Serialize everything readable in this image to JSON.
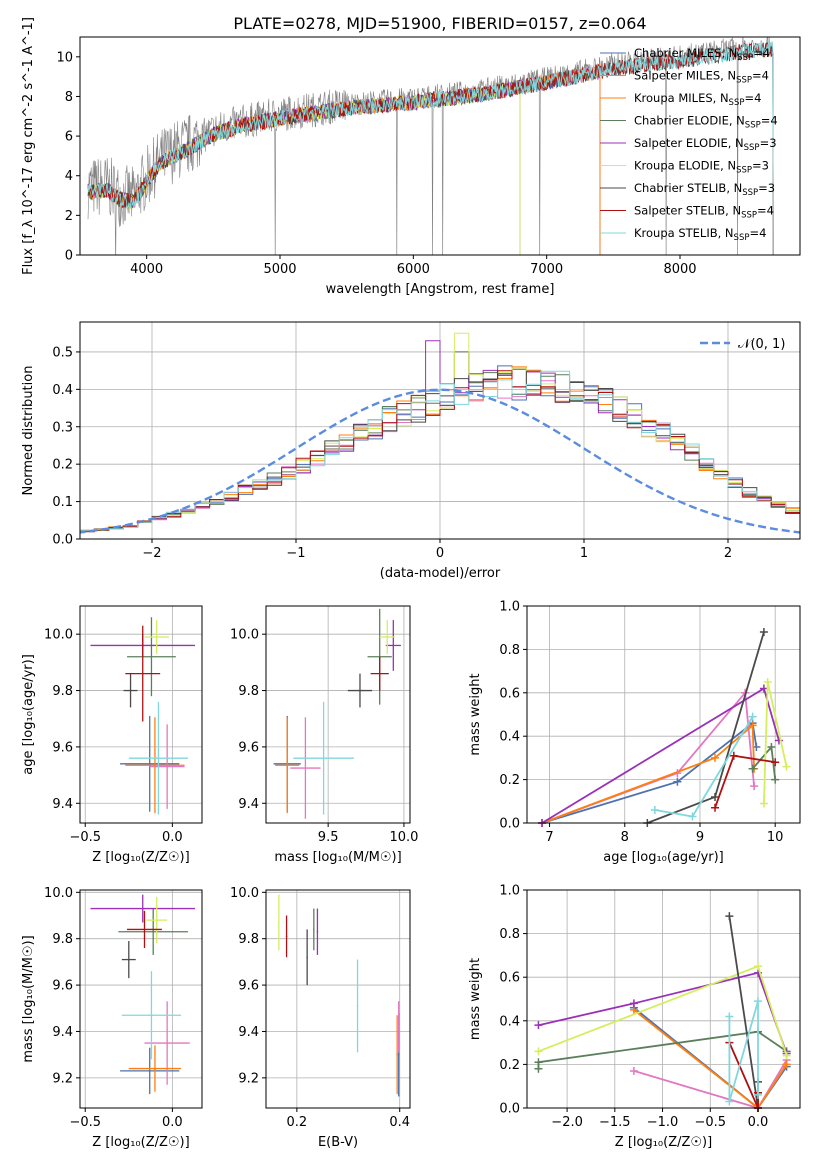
{
  "figure_title": "PLATE=0278, MJD=51900, FIBERID=0157, z=0.064",
  "colors": {
    "Chabrier MILES": "#4c72b0",
    "Salpeter MILES": "#e377c2",
    "Kroupa MILES": "#ff7f0e",
    "Chabrier ELODIE": "#5b7f5b",
    "Salpeter ELODIE": "#9b30b8",
    "Kroupa ELODIE": "#d4ee5e",
    "Chabrier STELIB": "#4a4a4a",
    "Salpeter STELIB": "#b01010",
    "Kroupa STELIB": "#80d8dc",
    "data": "#808080",
    "normal": "#5b8ce0"
  },
  "chart_data": [
    {
      "type": "line",
      "id": "spectrum",
      "xlabel": "wavelength [Angstrom, rest frame]",
      "ylabel": "Flux [f_λ 10^-17 erg cm^-2 s^-1 A^-1]",
      "xlim": [
        3500,
        8900
      ],
      "ylim": [
        0,
        11
      ],
      "xticks": [
        4000,
        5000,
        6000,
        7000,
        8000
      ],
      "yticks": [
        0,
        2,
        4,
        6,
        8,
        10
      ],
      "grid": false,
      "legend_position": "upper right",
      "continuum": {
        "x": [
          3600,
          3700,
          3800,
          3900,
          4000,
          4100,
          4200,
          4300,
          4400,
          4500,
          4700,
          5000,
          5500,
          6000,
          6500,
          7000,
          7500,
          8000,
          8500,
          8700
        ],
        "y": [
          3.4,
          3.5,
          3.0,
          2.9,
          3.9,
          4.8,
          5.2,
          5.5,
          5.9,
          6.3,
          6.7,
          7.1,
          7.6,
          7.9,
          8.3,
          8.9,
          9.6,
          10.0,
          10.5,
          10.6
        ]
      },
      "series": [
        {
          "name": "Chabrier MILES",
          "nssp": 4,
          "xmax": 7400
        },
        {
          "name": "Salpeter MILES",
          "nssp": 4,
          "xmax": 7400
        },
        {
          "name": "Kroupa MILES",
          "nssp": 4,
          "xmax": 7400
        },
        {
          "name": "Chabrier ELODIE",
          "nssp": 4,
          "xmax": 6800
        },
        {
          "name": "Salpeter ELODIE",
          "nssp": 3,
          "xmax": 6800
        },
        {
          "name": "Kroupa ELODIE",
          "nssp": 3,
          "xmax": 6800
        },
        {
          "name": "Chabrier STELIB",
          "nssp": 3,
          "xmax": 8700
        },
        {
          "name": "Salpeter STELIB",
          "nssp": 4,
          "xmax": 8700
        },
        {
          "name": "Kroupa STELIB",
          "nssp": 4,
          "xmax": 8700
        }
      ]
    },
    {
      "type": "histogram",
      "id": "residuals",
      "xlabel": "(data-model)/error",
      "ylabel": "Normed distribution",
      "xlim": [
        -2.5,
        2.5
      ],
      "ylim": [
        0,
        0.58
      ],
      "xticks": [
        -2,
        -1,
        0,
        1,
        2
      ],
      "yticks": [
        0.0,
        0.1,
        0.2,
        0.3,
        0.4,
        0.5
      ],
      "grid": true,
      "legend": "𝒩(0, 1)",
      "legend_position": "upper right",
      "bin_edges_start": -2.6,
      "bin_width": 0.1,
      "base_heights": [
        0.02,
        0.022,
        0.025,
        0.03,
        0.035,
        0.045,
        0.055,
        0.065,
        0.075,
        0.09,
        0.1,
        0.115,
        0.13,
        0.145,
        0.16,
        0.175,
        0.195,
        0.215,
        0.24,
        0.26,
        0.28,
        0.3,
        0.32,
        0.34,
        0.35,
        0.365,
        0.375,
        0.39,
        0.4,
        0.41,
        0.42,
        0.415,
        0.41,
        0.41,
        0.405,
        0.4,
        0.39,
        0.37,
        0.35,
        0.33,
        0.305,
        0.28,
        0.255,
        0.23,
        0.2,
        0.175,
        0.15,
        0.125,
        0.105,
        0.09,
        0.075,
        0.06,
        0.05,
        0.045,
        0.04,
        0.035,
        0.03,
        0.025,
        0.02,
        0.018,
        0.015,
        0.012
      ],
      "peaks": {
        "Salpeter ELODIE": [
          -0.05,
          0.53
        ],
        "Kroupa ELODIE": [
          0.15,
          0.55
        ],
        "Salpeter MILES": [
          0.15,
          0.5
        ],
        "Chabrier ELODIE": [
          0.15,
          0.5
        ]
      }
    },
    {
      "type": "errorbar",
      "id": "age_vs_Z",
      "xlabel": "Z [log₁₀(Z/Z☉)]",
      "ylabel": "age  [log₁₀(age/yr)]",
      "xlim": [
        -0.53,
        0.17
      ],
      "ylim": [
        9.33,
        10.1
      ],
      "xticks": [
        -0.5,
        0.0
      ],
      "yticks": [
        9.4,
        9.6,
        9.8,
        10.0
      ],
      "grid": true,
      "points": [
        {
          "name": "Chabrier MILES",
          "x": -0.13,
          "y": 9.54,
          "xerr": 0.17,
          "yerr": 0.17
        },
        {
          "name": "Salpeter MILES",
          "x": -0.03,
          "y": 9.53,
          "xerr": 0.1,
          "yerr": 0.15
        },
        {
          "name": "Kroupa MILES",
          "x": -0.1,
          "y": 9.535,
          "xerr": 0.17,
          "yerr": 0.17
        },
        {
          "name": "Chabrier ELODIE",
          "x": -0.12,
          "y": 9.92,
          "xerr": 0.14,
          "yerr": 0.14
        },
        {
          "name": "Salpeter ELODIE",
          "x": -0.17,
          "y": 9.96,
          "xerr": 0.3,
          "yerr": 0.04
        },
        {
          "name": "Kroupa ELODIE",
          "x": -0.09,
          "y": 9.99,
          "xerr": 0.07,
          "yerr": 0.06
        },
        {
          "name": "Chabrier STELIB",
          "x": -0.24,
          "y": 9.8,
          "xerr": 0.04,
          "yerr": 0.06
        },
        {
          "name": "Salpeter STELIB",
          "x": -0.17,
          "y": 9.86,
          "xerr": 0.1,
          "yerr": 0.17
        },
        {
          "name": "Kroupa STELIB",
          "x": -0.08,
          "y": 9.56,
          "xerr": 0.17,
          "yerr": 0.2
        }
      ]
    },
    {
      "type": "errorbar",
      "id": "age_vs_mass",
      "xlabel": "mass [log₁₀(M/M☉)]",
      "ylabel": "",
      "xlim": [
        9.09,
        10.04
      ],
      "ylim": [
        9.33,
        10.1
      ],
      "xticks": [
        9.5,
        10.0
      ],
      "yticks": [
        9.4,
        9.6,
        9.8,
        10.0
      ],
      "grid": true,
      "points": [
        {
          "name": "Chabrier MILES",
          "x": 9.23,
          "y": 9.54,
          "xerr": 0.09,
          "yerr": 0.17
        },
        {
          "name": "Salpeter MILES",
          "x": 9.35,
          "y": 9.525,
          "xerr": 0.1,
          "yerr": 0.18
        },
        {
          "name": "Kroupa MILES",
          "x": 9.23,
          "y": 9.535,
          "xerr": 0.08,
          "yerr": 0.17
        },
        {
          "name": "Chabrier ELODIE",
          "x": 9.84,
          "y": 9.92,
          "xerr": 0.08,
          "yerr": 0.17
        },
        {
          "name": "Salpeter ELODIE",
          "x": 9.93,
          "y": 9.96,
          "xerr": 0.05,
          "yerr": 0.09
        },
        {
          "name": "Kroupa ELODIE",
          "x": 9.89,
          "y": 9.99,
          "xerr": 0.05,
          "yerr": 0.06
        },
        {
          "name": "Chabrier STELIB",
          "x": 9.71,
          "y": 9.8,
          "xerr": 0.08,
          "yerr": 0.06
        },
        {
          "name": "Salpeter STELIB",
          "x": 9.84,
          "y": 9.86,
          "xerr": 0.06,
          "yerr": 0.06
        },
        {
          "name": "Kroupa STELIB",
          "x": 9.47,
          "y": 9.56,
          "xerr": 0.2,
          "yerr": 0.2
        }
      ]
    },
    {
      "type": "line",
      "id": "weight_vs_age",
      "xlabel": "age  [log₁₀(age/yr)]",
      "ylabel": "mass weight",
      "xlim": [
        6.7,
        10.33
      ],
      "ylim": [
        0,
        1
      ],
      "xticks": [
        7,
        8,
        9,
        10
      ],
      "yticks": [
        0.0,
        0.2,
        0.4,
        0.6,
        0.8,
        1.0
      ],
      "grid": true,
      "series": [
        {
          "name": "Chabrier MILES",
          "points": [
            [
              6.9,
              0.0
            ],
            [
              8.7,
              0.19
            ],
            [
              9.7,
              0.46
            ],
            [
              9.75,
              0.35
            ]
          ]
        },
        {
          "name": "Salpeter MILES",
          "points": [
            [
              6.9,
              0.0
            ],
            [
              8.7,
              0.23
            ],
            [
              9.6,
              0.6
            ],
            [
              9.72,
              0.17
            ]
          ]
        },
        {
          "name": "Kroupa MILES",
          "points": [
            [
              6.9,
              0.0
            ],
            [
              9.2,
              0.3
            ],
            [
              9.7,
              0.45
            ],
            [
              9.72,
              0.25
            ]
          ]
        },
        {
          "name": "Chabrier ELODIE",
          "points": [
            [
              9.7,
              0.25
            ],
            [
              9.95,
              0.35
            ],
            [
              10.0,
              0.2
            ]
          ]
        },
        {
          "name": "Salpeter ELODIE",
          "points": [
            [
              6.9,
              0.0
            ],
            [
              9.85,
              0.62
            ],
            [
              10.05,
              0.38
            ]
          ]
        },
        {
          "name": "Kroupa ELODIE",
          "points": [
            [
              9.85,
              0.09
            ],
            [
              9.9,
              0.65
            ],
            [
              10.15,
              0.26
            ]
          ]
        },
        {
          "name": "Chabrier STELIB",
          "points": [
            [
              8.3,
              0.0
            ],
            [
              9.2,
              0.12
            ],
            [
              9.85,
              0.88
            ]
          ]
        },
        {
          "name": "Salpeter STELIB",
          "points": [
            [
              9.2,
              0.07
            ],
            [
              9.45,
              0.31
            ],
            [
              10.0,
              0.28
            ]
          ]
        },
        {
          "name": "Kroupa STELIB",
          "points": [
            [
              8.4,
              0.06
            ],
            [
              8.9,
              0.03
            ],
            [
              9.7,
              0.49
            ]
          ]
        }
      ]
    },
    {
      "type": "errorbar",
      "id": "mass_vs_Z",
      "xlabel": "Z [log₁₀(Z/Z☉)]",
      "ylabel": "mass [log₁₀(M/M☉)]",
      "xlim": [
        -0.53,
        0.17
      ],
      "ylim": [
        9.07,
        10.01
      ],
      "xticks": [
        -0.5,
        0.0
      ],
      "yticks": [
        9.2,
        9.4,
        9.6,
        9.8,
        10.0
      ],
      "grid": true,
      "points": [
        {
          "name": "Chabrier MILES",
          "x": -0.13,
          "y": 9.23,
          "xerr": 0.17,
          "yerr": 0.1
        },
        {
          "name": "Salpeter MILES",
          "x": -0.03,
          "y": 9.35,
          "xerr": 0.13,
          "yerr": 0.18
        },
        {
          "name": "Kroupa MILES",
          "x": -0.1,
          "y": 9.24,
          "xerr": 0.15,
          "yerr": 0.1
        },
        {
          "name": "Chabrier ELODIE",
          "x": -0.11,
          "y": 9.83,
          "xerr": 0.2,
          "yerr": 0.1
        },
        {
          "name": "Salpeter ELODIE",
          "x": -0.17,
          "y": 9.93,
          "xerr": 0.3,
          "yerr": 0.06
        },
        {
          "name": "Kroupa ELODIE",
          "x": -0.09,
          "y": 9.88,
          "xerr": 0.06,
          "yerr": 0.1
        },
        {
          "name": "Chabrier STELIB",
          "x": -0.25,
          "y": 9.71,
          "xerr": 0.04,
          "yerr": 0.08
        },
        {
          "name": "Salpeter STELIB",
          "x": -0.16,
          "y": 9.84,
          "xerr": 0.1,
          "yerr": 0.08
        },
        {
          "name": "Kroupa STELIB",
          "x": -0.12,
          "y": 9.47,
          "xerr": 0.17,
          "yerr": 0.19
        }
      ]
    },
    {
      "type": "errorbar",
      "id": "mass_vs_ebv",
      "xlabel": "E(B-V)",
      "ylabel": "",
      "xlim": [
        0.14,
        0.42
      ],
      "ylim": [
        9.07,
        10.01
      ],
      "xticks": [
        0.2,
        0.4
      ],
      "yticks": [
        9.2,
        9.4,
        9.6,
        9.8,
        10.0
      ],
      "grid": true,
      "points": [
        {
          "name": "Chabrier MILES",
          "x": 0.398,
          "y": 9.3,
          "xerr": 0.0,
          "yerr": 0.18
        },
        {
          "name": "Salpeter MILES",
          "x": 0.398,
          "y": 9.42,
          "xerr": 0.0,
          "yerr": 0.11
        },
        {
          "name": "Kroupa MILES",
          "x": 0.395,
          "y": 9.3,
          "xerr": 0.0,
          "yerr": 0.17
        },
        {
          "name": "Chabrier ELODIE",
          "x": 0.233,
          "y": 9.84,
          "xerr": 0.0,
          "yerr": 0.09
        },
        {
          "name": "Salpeter ELODIE",
          "x": 0.24,
          "y": 9.83,
          "xerr": 0.0,
          "yerr": 0.1
        },
        {
          "name": "Kroupa ELODIE",
          "x": 0.165,
          "y": 9.87,
          "xerr": 0.0,
          "yerr": 0.12
        },
        {
          "name": "Chabrier STELIB",
          "x": 0.22,
          "y": 9.72,
          "xerr": 0.0,
          "yerr": 0.12
        },
        {
          "name": "Salpeter STELIB",
          "x": 0.18,
          "y": 9.81,
          "xerr": 0.0,
          "yerr": 0.09
        },
        {
          "name": "Kroupa STELIB",
          "x": 0.318,
          "y": 9.51,
          "xerr": 0.0,
          "yerr": 0.2
        }
      ]
    },
    {
      "type": "line",
      "id": "weight_vs_Z",
      "xlabel": "Z [log₁₀(Z/Z☉)]",
      "ylabel": "mass weight",
      "xlim": [
        -2.42,
        0.44
      ],
      "ylim": [
        0,
        1
      ],
      "xticks": [
        -2.0,
        -1.5,
        -1.0,
        -0.5,
        0.0
      ],
      "yticks": [
        0.0,
        0.2,
        0.4,
        0.6,
        0.8,
        1.0
      ],
      "grid": true,
      "series": [
        {
          "name": "Chabrier MILES",
          "points": [
            [
              -1.3,
              0.46
            ],
            [
              0.0,
              0.0
            ],
            [
              0.3,
              0.19
            ]
          ]
        },
        {
          "name": "Salpeter MILES",
          "points": [
            [
              -1.3,
              0.17
            ],
            [
              0.0,
              0.0
            ],
            [
              0.3,
              0.22
            ]
          ]
        },
        {
          "name": "Kroupa MILES",
          "points": [
            [
              -1.3,
              0.45
            ],
            [
              0.0,
              0.0
            ],
            [
              0.3,
              0.2
            ]
          ]
        },
        {
          "name": "Chabrier ELODIE",
          "points": [
            [
              -2.3,
              0.18
            ],
            [
              -2.3,
              0.21
            ],
            [
              0.0,
              0.35
            ],
            [
              0.3,
              0.26
            ]
          ]
        },
        {
          "name": "Salpeter ELODIE",
          "points": [
            [
              -2.3,
              0.38
            ],
            [
              -1.3,
              0.48
            ],
            [
              0.0,
              0.62
            ],
            [
              0.3,
              0.25
            ]
          ]
        },
        {
          "name": "Kroupa ELODIE",
          "points": [
            [
              -2.3,
              0.26
            ],
            [
              0.0,
              0.65
            ],
            [
              0.3,
              0.24
            ]
          ]
        },
        {
          "name": "Chabrier STELIB",
          "points": [
            [
              -0.3,
              0.88
            ],
            [
              0.0,
              0.0
            ],
            [
              0.0,
              0.12
            ]
          ]
        },
        {
          "name": "Salpeter STELIB",
          "points": [
            [
              -0.3,
              0.3
            ],
            [
              0.0,
              0.0
            ],
            [
              0.0,
              0.07
            ]
          ]
        },
        {
          "name": "Kroupa STELIB",
          "points": [
            [
              -0.3,
              0.42
            ],
            [
              -0.3,
              0.03
            ],
            [
              0.0,
              0.49
            ],
            [
              0.0,
              0.06
            ]
          ]
        }
      ]
    }
  ]
}
